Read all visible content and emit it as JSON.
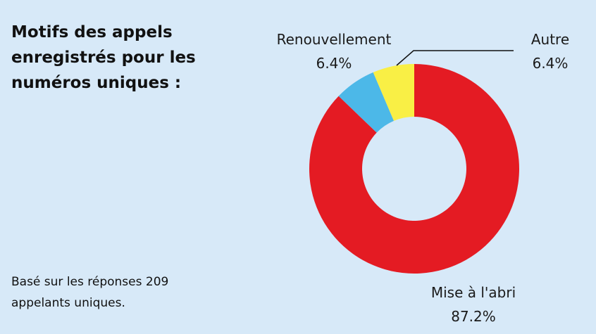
{
  "title_lines": [
    "Motifs des appels",
    "enregistrés pour les",
    "numéros uniques :"
  ],
  "note_lines": [
    "Basé sur les réponses 209",
    "appelants uniques."
  ],
  "chart_data": {
    "type": "pie",
    "donut": true,
    "title": "Motifs des appels enregistrés pour les numéros uniques :",
    "slices": [
      {
        "label": "Mise à l'abri",
        "value": 87.2,
        "value_label": "87.2%",
        "color": "#e41b23"
      },
      {
        "label": "Renouvellement",
        "value": 6.4,
        "value_label": "6.4%",
        "color": "#4cb8e8"
      },
      {
        "label": "Autre",
        "value": 6.4,
        "value_label": "6.4%",
        "color": "#f9ef45"
      }
    ]
  }
}
